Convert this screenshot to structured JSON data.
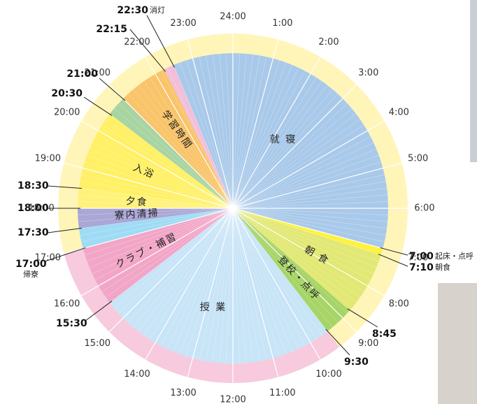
{
  "chart_data": {
    "type": "clock",
    "hours": [
      "24:00",
      "1:00",
      "2:00",
      "3:00",
      "4:00",
      "5:00",
      "6:00",
      "7:00",
      "8:00",
      "9:00",
      "10:00",
      "11:00",
      "12:00",
      "13:00",
      "14:00",
      "15:00",
      "16:00",
      "17:00",
      "18:00",
      "19:00",
      "20:00",
      "21:00",
      "22:00",
      "23:00"
    ],
    "segments": [
      {
        "label": "就 寝",
        "start": "22:30",
        "end": "7:00",
        "color": "#a9c9ea"
      },
      {
        "start": "7:00",
        "end": "7:10",
        "color": "#fff23e"
      },
      {
        "label": "朝 食",
        "start": "7:10",
        "end": "8:45",
        "color": "#e1e874"
      },
      {
        "label": "登校・点呼",
        "start": "8:45",
        "end": "9:30",
        "color": "#a7d467"
      },
      {
        "label": "授 業",
        "start": "9:30",
        "end": "15:30",
        "color": "#c8e4f7"
      },
      {
        "label": "クラブ・補習",
        "start": "15:30",
        "end": "17:00",
        "color": "#f2a6c7"
      },
      {
        "start": "17:00",
        "end": "17:30",
        "color": "#9fdbf4"
      },
      {
        "label": "寮内清掃",
        "start": "17:30",
        "end": "18:00",
        "color": "#aaa6d6"
      },
      {
        "label": "夕食",
        "start": "18:00",
        "end": "18:30",
        "color": "#fff27a"
      },
      {
        "label": "入浴",
        "start": "18:30",
        "end": "20:30",
        "color": "#fff066"
      },
      {
        "start": "20:30",
        "end": "21:00",
        "color": "#a8d4a2"
      },
      {
        "label": "学習時間",
        "start": "21:00",
        "end": "22:15",
        "color": "#f9c46a"
      },
      {
        "start": "22:15",
        "end": "22:30",
        "color": "#f1bfd9"
      }
    ],
    "ring": [
      {
        "start": "17:00",
        "end": "9:30",
        "color": "#fff5b8"
      },
      {
        "start": "9:30",
        "end": "17:00",
        "color": "#f7cadd"
      }
    ],
    "callouts": [
      {
        "time": "22:30",
        "note": "消灯"
      },
      {
        "time": "22:15"
      },
      {
        "time": "21:00"
      },
      {
        "time": "20:30"
      },
      {
        "time": "18:30"
      },
      {
        "time": "18:00"
      },
      {
        "time": "17:30"
      },
      {
        "time": "17:00",
        "note": "帰寮"
      },
      {
        "time": "15:30"
      },
      {
        "time": "7:00",
        "note": "起床・点呼"
      },
      {
        "time": "7:10",
        "note": "朝食"
      },
      {
        "time": "8:45"
      },
      {
        "time": "9:30"
      }
    ]
  }
}
